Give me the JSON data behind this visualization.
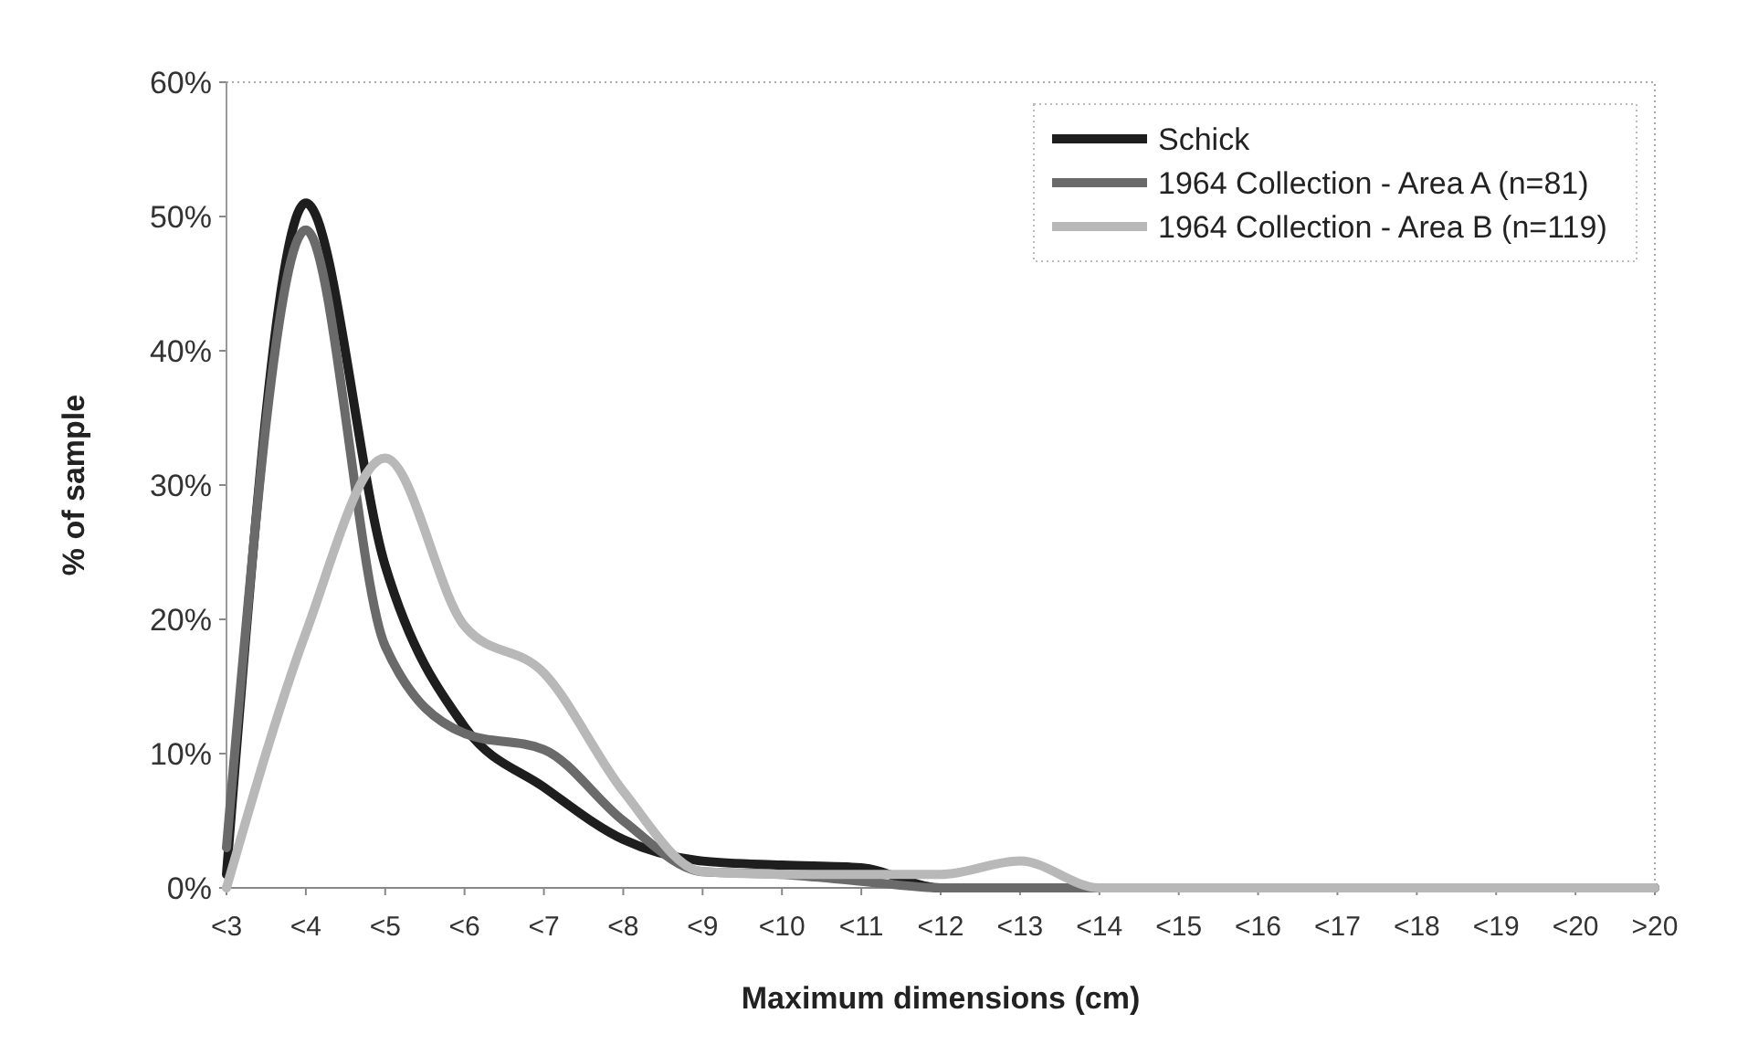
{
  "chart_data": {
    "type": "line",
    "xlabel": "Maximum dimensions (cm)",
    "ylabel": "% of sample",
    "categories": [
      "<3",
      "<4",
      "<5",
      "<6",
      "<7",
      "<8",
      "<9",
      "<10",
      "<11",
      "<12",
      "<13",
      "<14",
      "<15",
      "<16",
      "<17",
      "<18",
      "<19",
      "<20",
      ">20"
    ],
    "series": [
      {
        "name": "Schick",
        "color": "#1e1e1e",
        "values": [
          1,
          51,
          24,
          12,
          7.5,
          3.6,
          2,
          1.7,
          1.5,
          0,
          0,
          0,
          0,
          0,
          0,
          0,
          0,
          0,
          0
        ]
      },
      {
        "name": "1964 Collection - Area A (n=81)",
        "color": "#6a6a6a",
        "values": [
          3,
          49,
          18,
          11.5,
          10.3,
          5,
          1.2,
          1,
          0.5,
          0,
          0,
          0,
          0,
          0,
          0,
          0,
          0,
          0,
          0
        ]
      },
      {
        "name": "1964 Collection - Area B (n=119)",
        "color": "#b8b8b8",
        "values": [
          0,
          19,
          32,
          19.5,
          16,
          7.2,
          1.2,
          1,
          1,
          1,
          2,
          0,
          0,
          0,
          0,
          0,
          0,
          0,
          0
        ]
      }
    ],
    "ylim": [
      0,
      60
    ],
    "yticks": [
      {
        "value": 0,
        "label": "0%"
      },
      {
        "value": 10,
        "label": "10%"
      },
      {
        "value": 20,
        "label": "20%"
      },
      {
        "value": 30,
        "label": "30%"
      },
      {
        "value": 40,
        "label": "40%"
      },
      {
        "value": 50,
        "label": "50%"
      },
      {
        "value": 60,
        "label": "60%"
      }
    ],
    "grid": false,
    "legend": "top right",
    "marker": "none",
    "line_style": "solid"
  }
}
